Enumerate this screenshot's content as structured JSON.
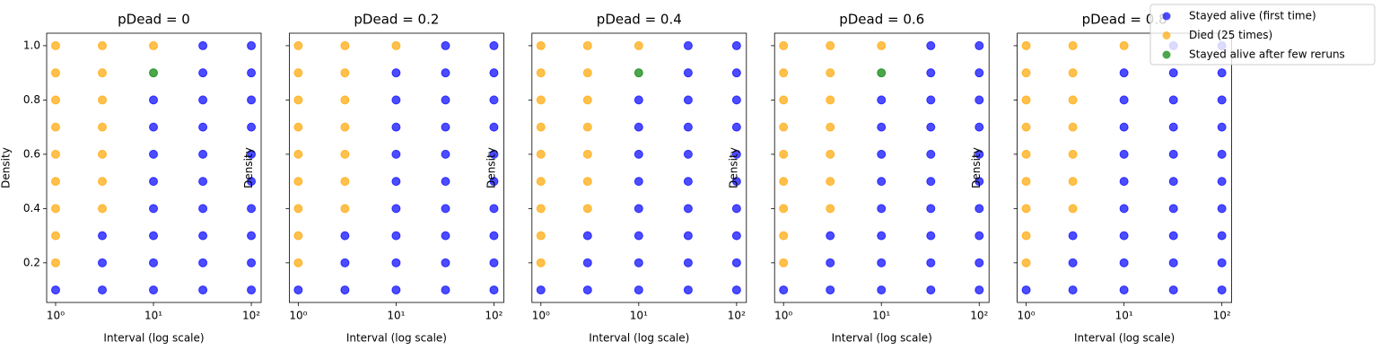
{
  "chart_data": [
    {
      "type": "scatter",
      "title": "pDead = 0",
      "xlabel": "Interval (log scale)",
      "ylabel": "Density",
      "xscale": "log",
      "xlim": [
        0.81,
        126
      ],
      "ylim": [
        0.054,
        1.046
      ],
      "xticks": [
        {
          "value": 1,
          "label": "10⁰"
        },
        {
          "value": 10,
          "label": "10¹"
        },
        {
          "value": 100,
          "label": "10²"
        }
      ],
      "yticks": [
        0.2,
        0.4,
        0.6,
        0.8,
        {
          "value": 1,
          "label": "1.0"
        }
      ],
      "series": [
        {
          "color": "#0000ff",
          "x": [
            1,
            3,
            3,
            3,
            10,
            10,
            10,
            10,
            10,
            10,
            10,
            10,
            32,
            32,
            32,
            32,
            32,
            32,
            32,
            32,
            32,
            32,
            100,
            100,
            100,
            100,
            100,
            100,
            100,
            100,
            100,
            100
          ],
          "y": [
            0.1,
            0.1,
            0.2,
            0.3,
            0.1,
            0.2,
            0.3,
            0.4,
            0.5,
            0.6,
            0.7,
            0.8,
            0.1,
            0.2,
            0.3,
            0.4,
            0.5,
            0.6,
            0.7,
            0.8,
            0.9,
            1.0,
            0.1,
            0.2,
            0.3,
            0.4,
            0.5,
            0.6,
            0.7,
            0.8,
            0.9,
            1.0
          ]
        },
        {
          "color": "#ffa500",
          "x": [
            1,
            1,
            1,
            1,
            1,
            1,
            1,
            1,
            1,
            3,
            3,
            3,
            3,
            3,
            3,
            3,
            10
          ],
          "y": [
            0.2,
            0.3,
            0.4,
            0.5,
            0.6,
            0.7,
            0.8,
            0.9,
            1.0,
            0.4,
            0.5,
            0.6,
            0.7,
            0.8,
            0.9,
            1.0,
            1.0
          ]
        },
        {
          "color": "#008000",
          "x": [
            10
          ],
          "y": [
            0.9
          ]
        }
      ]
    },
    {
      "type": "scatter",
      "title": "pDead = 0.2",
      "xlabel": "Interval (log scale)",
      "ylabel": "Density",
      "xscale": "log",
      "xlim": [
        0.81,
        126
      ],
      "sharey": true,
      "xticks": [
        {
          "value": 1,
          "label": "10⁰"
        },
        {
          "value": 10,
          "label": "10¹"
        },
        {
          "value": 100,
          "label": "10²"
        }
      ],
      "series": [
        {
          "color": "#0000ff",
          "x": [
            1,
            3,
            3,
            3,
            10,
            10,
            10,
            10,
            10,
            10,
            10,
            10,
            10,
            32,
            32,
            32,
            32,
            32,
            32,
            32,
            32,
            32,
            32,
            100,
            100,
            100,
            100,
            100,
            100,
            100,
            100,
            100,
            100
          ],
          "y": [
            0.1,
            0.1,
            0.2,
            0.3,
            0.1,
            0.2,
            0.3,
            0.4,
            0.5,
            0.6,
            0.7,
            0.8,
            0.9,
            0.1,
            0.2,
            0.3,
            0.4,
            0.5,
            0.6,
            0.7,
            0.8,
            0.9,
            1.0,
            0.1,
            0.2,
            0.3,
            0.4,
            0.5,
            0.6,
            0.7,
            0.8,
            0.9,
            1.0
          ]
        },
        {
          "color": "#ffa500",
          "x": [
            1,
            1,
            1,
            1,
            1,
            1,
            1,
            1,
            1,
            3,
            3,
            3,
            3,
            3,
            3,
            3,
            10
          ],
          "y": [
            0.2,
            0.3,
            0.4,
            0.5,
            0.6,
            0.7,
            0.8,
            0.9,
            1.0,
            0.4,
            0.5,
            0.6,
            0.7,
            0.8,
            0.9,
            1.0,
            1.0
          ]
        }
      ]
    },
    {
      "type": "scatter",
      "title": "pDead = 0.4",
      "xlabel": "Interval (log scale)",
      "ylabel": "Density",
      "xscale": "log",
      "xlim": [
        0.81,
        126
      ],
      "sharey": true,
      "xticks": [
        {
          "value": 1,
          "label": "10⁰"
        },
        {
          "value": 10,
          "label": "10¹"
        },
        {
          "value": 100,
          "label": "10²"
        }
      ],
      "series": [
        {
          "color": "#0000ff",
          "x": [
            1,
            3,
            3,
            3,
            10,
            10,
            10,
            10,
            10,
            10,
            10,
            10,
            32,
            32,
            32,
            32,
            32,
            32,
            32,
            32,
            32,
            32,
            100,
            100,
            100,
            100,
            100,
            100,
            100,
            100,
            100,
            100
          ],
          "y": [
            0.1,
            0.1,
            0.2,
            0.3,
            0.1,
            0.2,
            0.3,
            0.4,
            0.5,
            0.6,
            0.7,
            0.8,
            0.1,
            0.2,
            0.3,
            0.4,
            0.5,
            0.6,
            0.7,
            0.8,
            0.9,
            1.0,
            0.1,
            0.2,
            0.3,
            0.4,
            0.5,
            0.6,
            0.7,
            0.8,
            0.9,
            1.0
          ]
        },
        {
          "color": "#ffa500",
          "x": [
            1,
            1,
            1,
            1,
            1,
            1,
            1,
            1,
            1,
            3,
            3,
            3,
            3,
            3,
            3,
            3,
            10
          ],
          "y": [
            0.2,
            0.3,
            0.4,
            0.5,
            0.6,
            0.7,
            0.8,
            0.9,
            1.0,
            0.4,
            0.5,
            0.6,
            0.7,
            0.8,
            0.9,
            1.0,
            1.0
          ]
        },
        {
          "color": "#008000",
          "x": [
            10
          ],
          "y": [
            0.9
          ]
        }
      ]
    },
    {
      "type": "scatter",
      "title": "pDead = 0.6",
      "xlabel": "Interval (log scale)",
      "ylabel": "Density",
      "xscale": "log",
      "xlim": [
        0.81,
        126
      ],
      "sharey": true,
      "xticks": [
        {
          "value": 1,
          "label": "10⁰"
        },
        {
          "value": 10,
          "label": "10¹"
        },
        {
          "value": 100,
          "label": "10²"
        }
      ],
      "series": [
        {
          "color": "#0000ff",
          "x": [
            1,
            3,
            3,
            3,
            10,
            10,
            10,
            10,
            10,
            10,
            10,
            10,
            32,
            32,
            32,
            32,
            32,
            32,
            32,
            32,
            32,
            32,
            100,
            100,
            100,
            100,
            100,
            100,
            100,
            100,
            100,
            100
          ],
          "y": [
            0.1,
            0.1,
            0.2,
            0.3,
            0.1,
            0.2,
            0.3,
            0.4,
            0.5,
            0.6,
            0.7,
            0.8,
            0.1,
            0.2,
            0.3,
            0.4,
            0.5,
            0.6,
            0.7,
            0.8,
            0.9,
            1.0,
            0.1,
            0.2,
            0.3,
            0.4,
            0.5,
            0.6,
            0.7,
            0.8,
            0.9,
            1.0
          ]
        },
        {
          "color": "#ffa500",
          "x": [
            1,
            1,
            1,
            1,
            1,
            1,
            1,
            1,
            1,
            3,
            3,
            3,
            3,
            3,
            3,
            3,
            10
          ],
          "y": [
            0.2,
            0.3,
            0.4,
            0.5,
            0.6,
            0.7,
            0.8,
            0.9,
            1.0,
            0.4,
            0.5,
            0.6,
            0.7,
            0.8,
            0.9,
            1.0,
            1.0
          ]
        },
        {
          "color": "#008000",
          "x": [
            10
          ],
          "y": [
            0.9
          ]
        }
      ]
    },
    {
      "type": "scatter",
      "title": "pDead = 0.8",
      "xlabel": "Interval (log scale)",
      "ylabel": "Density",
      "xscale": "log",
      "xlim": [
        0.81,
        126
      ],
      "sharey": true,
      "xticks": [
        {
          "value": 1,
          "label": "10⁰"
        },
        {
          "value": 10,
          "label": "10¹"
        },
        {
          "value": 100,
          "label": "10²"
        }
      ],
      "series": [
        {
          "color": "#0000ff",
          "x": [
            1,
            3,
            3,
            3,
            10,
            10,
            10,
            10,
            10,
            10,
            10,
            10,
            10,
            32,
            32,
            32,
            32,
            32,
            32,
            32,
            32,
            32,
            32,
            100,
            100,
            100,
            100,
            100,
            100,
            100,
            100,
            100,
            100
          ],
          "y": [
            0.1,
            0.1,
            0.2,
            0.3,
            0.1,
            0.2,
            0.3,
            0.4,
            0.5,
            0.6,
            0.7,
            0.8,
            0.9,
            0.1,
            0.2,
            0.3,
            0.4,
            0.5,
            0.6,
            0.7,
            0.8,
            0.9,
            1.0,
            0.1,
            0.2,
            0.3,
            0.4,
            0.5,
            0.6,
            0.7,
            0.8,
            0.9,
            1.0
          ]
        },
        {
          "color": "#ffa500",
          "x": [
            1,
            1,
            1,
            1,
            1,
            1,
            1,
            1,
            1,
            3,
            3,
            3,
            3,
            3,
            3,
            3,
            10
          ],
          "y": [
            0.2,
            0.3,
            0.4,
            0.5,
            0.6,
            0.7,
            0.8,
            0.9,
            1.0,
            0.4,
            0.5,
            0.6,
            0.7,
            0.8,
            0.9,
            1.0,
            1.0
          ]
        }
      ]
    }
  ],
  "legend": {
    "corner": "upper right",
    "entries": [
      {
        "name": "Stayed alive (first time)",
        "color": "#0000ff"
      },
      {
        "name": "Died (25 times)",
        "color": "#ffa500"
      },
      {
        "name": "Stayed alive after few reruns",
        "color": "#008000"
      }
    ]
  }
}
